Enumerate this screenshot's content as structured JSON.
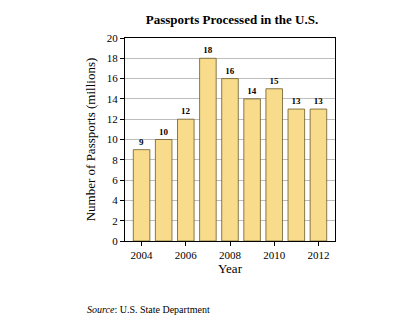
{
  "chart_data": {
    "type": "bar",
    "title": "Passports Processed in the U.S.",
    "x": [
      2004,
      2005,
      2006,
      2007,
      2008,
      2009,
      2010,
      2011,
      2012
    ],
    "values": [
      9,
      10,
      12,
      18,
      16,
      14,
      15,
      13,
      13
    ],
    "color": "#f8dc8c",
    "xlabel": "Year",
    "ylabel": "Number of Passports (millions)",
    "xlim": [
      2003.25,
      2012.75
    ],
    "xticks": [
      2004,
      2006,
      2008,
      2010,
      2012
    ],
    "ylim": [
      0,
      20
    ],
    "yticks": [
      0,
      2,
      4,
      6,
      8,
      10,
      12,
      14,
      16,
      18,
      20
    ],
    "grid": true,
    "data_labels": true,
    "source": "Source: U.S. State Department"
  }
}
